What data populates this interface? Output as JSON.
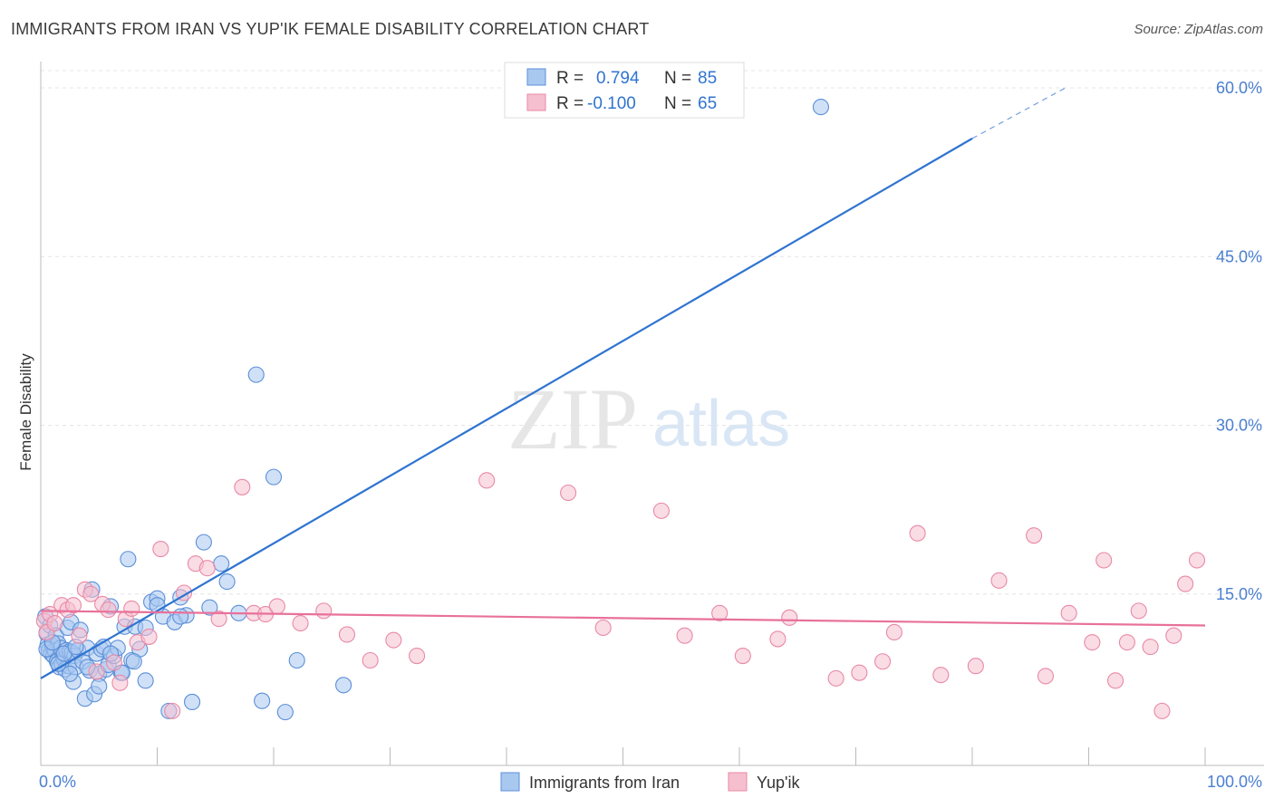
{
  "chart_data": {
    "type": "scatter",
    "title": "IMMIGRANTS FROM IRAN VS YUP'IK FEMALE DISABILITY CORRELATION CHART",
    "source": "Source: ZipAtlas.com",
    "ylabel": "Female Disability",
    "xlabel": "",
    "xlim": [
      0,
      100
    ],
    "ylim": [
      0,
      62
    ],
    "x_tick_labels": [
      "0.0%",
      "100.0%"
    ],
    "y_ticks": [
      15,
      30,
      45,
      60
    ],
    "y_tick_labels": [
      "15.0%",
      "30.0%",
      "45.0%",
      "60.0%"
    ],
    "legend_position": "top-center",
    "watermark": "ZIPatlas",
    "series": [
      {
        "name": "Immigrants from Iran",
        "color": "#5b8fd8",
        "fill": "#a9c8f0",
        "line_color": "#2f74d0",
        "R": "0.794",
        "N": "85",
        "trend": {
          "x0": 0,
          "y0": 7.5,
          "x1": 80,
          "y1": 55.5,
          "dash_x1": 88,
          "dash_y1": 60
        },
        "x": [
          0.4,
          0.5,
          0.6,
          0.7,
          0.8,
          0.9,
          1.0,
          1.1,
          1.2,
          1.3,
          1.4,
          1.5,
          1.6,
          1.7,
          1.8,
          1.9,
          2.0,
          2.1,
          2.2,
          2.3,
          2.4,
          2.5,
          2.6,
          2.7,
          2.8,
          2.9,
          3.0,
          3.2,
          3.4,
          3.6,
          3.8,
          4.0,
          4.2,
          4.4,
          4.6,
          4.8,
          5.0,
          5.2,
          5.4,
          5.6,
          5.8,
          6.0,
          6.3,
          6.6,
          6.9,
          7.2,
          7.5,
          7.8,
          8.1,
          8.5,
          9.0,
          9.5,
          10.0,
          10.5,
          11.0,
          11.5,
          12.0,
          12.5,
          13.0,
          14.0,
          14.5,
          15.5,
          16.0,
          17.0,
          18.5,
          19.0,
          20.0,
          21.0,
          22.0,
          26.0,
          67.0,
          0.5,
          1.0,
          1.5,
          2.0,
          2.5,
          3.0,
          4.0,
          5.0,
          6.0,
          7.0,
          8.0,
          9.0,
          10.0,
          12.0
        ],
        "y": [
          13.0,
          11.5,
          10.5,
          10.0,
          12.2,
          9.7,
          10.4,
          9.5,
          10.0,
          11.3,
          9.0,
          10.6,
          8.5,
          10.2,
          8.8,
          9.5,
          9.2,
          8.3,
          10.0,
          12.0,
          8.6,
          9.9,
          12.5,
          9.8,
          7.2,
          9.5,
          8.5,
          10.0,
          11.8,
          9.0,
          5.7,
          10.2,
          8.2,
          15.4,
          6.1,
          9.7,
          7.9,
          10.1,
          10.3,
          8.3,
          8.7,
          13.9,
          9.5,
          10.2,
          8.0,
          12.1,
          18.1,
          9.1,
          12.1,
          10.1,
          7.3,
          14.3,
          14.6,
          13.0,
          4.6,
          12.5,
          14.7,
          13.1,
          5.4,
          19.6,
          13.8,
          17.7,
          16.1,
          13.3,
          34.5,
          5.5,
          25.4,
          4.5,
          9.1,
          6.9,
          58.3,
          10.1,
          10.7,
          8.8,
          9.7,
          7.9,
          10.3,
          8.5,
          6.8,
          9.7,
          8.0,
          9.0,
          12.0,
          14.0,
          13.0
        ]
      },
      {
        "name": "Yup'ik",
        "color": "#e889a6",
        "fill": "#f6bfcf",
        "line_color": "#e8719a",
        "R": "-0.100",
        "N": "65",
        "trend": {
          "x0": 0,
          "y0": 13.5,
          "x1": 100,
          "y1": 12.2
        },
        "x": [
          0.3,
          0.5,
          0.8,
          1.2,
          1.8,
          2.3,
          2.8,
          3.3,
          3.8,
          4.3,
          4.8,
          5.3,
          5.8,
          6.3,
          6.8,
          7.3,
          7.8,
          8.3,
          9.3,
          10.3,
          11.3,
          12.3,
          13.3,
          14.3,
          15.3,
          17.3,
          18.3,
          19.3,
          20.3,
          22.3,
          24.3,
          26.3,
          28.3,
          30.3,
          32.3,
          38.3,
          45.3,
          48.3,
          55.3,
          58.3,
          60.3,
          63.3,
          68.3,
          70.3,
          72.3,
          75.3,
          77.3,
          80.3,
          82.3,
          85.3,
          88.3,
          90.3,
          92.3,
          95.3,
          96.3,
          97.3,
          98.3,
          99.3,
          53.3,
          64.3,
          73.3,
          86.3,
          93.3,
          94.3,
          91.3
        ],
        "y": [
          12.6,
          11.6,
          13.2,
          12.4,
          14.0,
          13.6,
          14.0,
          11.3,
          15.4,
          15.0,
          8.1,
          14.1,
          13.6,
          8.9,
          7.1,
          12.8,
          13.7,
          10.7,
          11.2,
          19.0,
          4.6,
          15.1,
          17.7,
          17.3,
          12.8,
          24.5,
          13.3,
          13.2,
          13.9,
          12.4,
          13.5,
          11.4,
          9.1,
          10.9,
          9.5,
          25.1,
          24.0,
          12.0,
          11.3,
          13.3,
          9.5,
          11.0,
          7.5,
          8.0,
          9.0,
          20.4,
          7.8,
          8.6,
          16.2,
          20.2,
          13.3,
          10.7,
          7.3,
          10.3,
          4.6,
          11.3,
          15.9,
          18.0,
          22.4,
          12.9,
          11.6,
          7.7,
          10.7,
          13.5,
          18.0
        ]
      }
    ]
  }
}
